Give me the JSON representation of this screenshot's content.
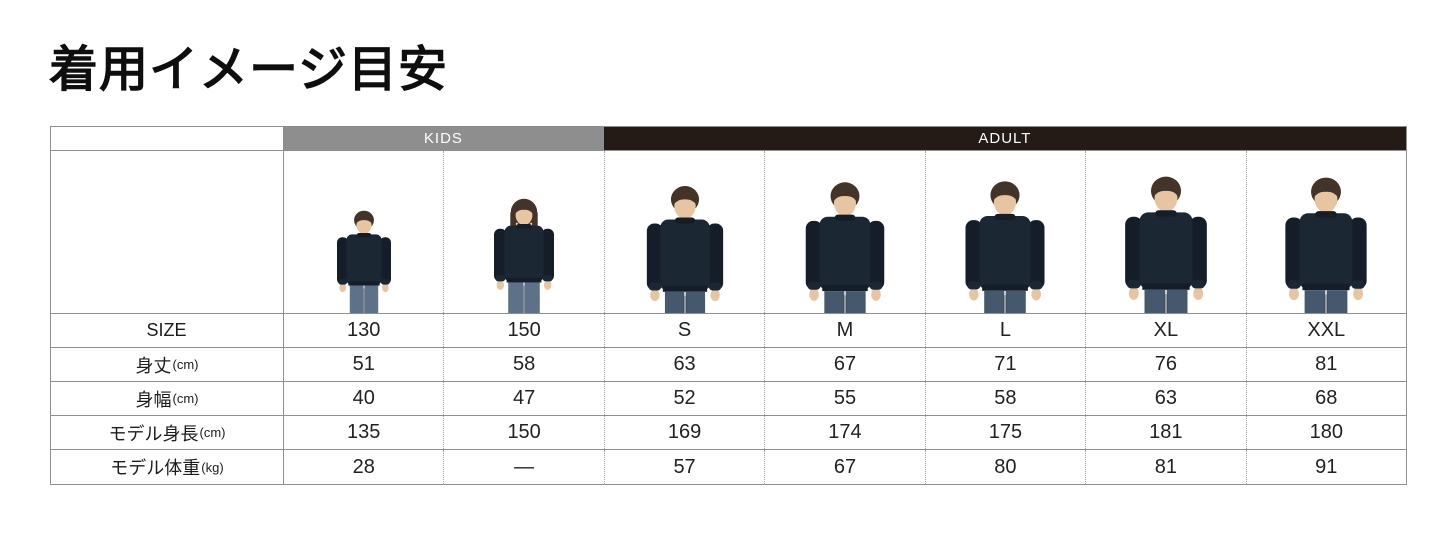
{
  "page": {
    "title": "着用イメージ目安"
  },
  "colors": {
    "kids_bar": "#8e8e8e",
    "adult_bar": "#241a16",
    "header_text": "#ffffff",
    "sweatshirt": "#1c2734",
    "sweatshirt_dark": "#141d28",
    "jeans_child": "#5d7289",
    "jeans_adult": "#46586d",
    "skin": "#e7c4a2",
    "hair": "#443329"
  },
  "table": {
    "groups": [
      {
        "label": "KIDS",
        "span": 2
      },
      {
        "label": "ADULT",
        "span": 5
      }
    ],
    "columns": [
      {
        "person": "child",
        "hair": "short"
      },
      {
        "person": "child",
        "hair": "medium"
      },
      {
        "person": "adult",
        "hair": "short"
      },
      {
        "person": "adult",
        "hair": "short"
      },
      {
        "person": "adult",
        "hair": "short"
      },
      {
        "person": "adult",
        "hair": "short"
      },
      {
        "person": "adult",
        "hair": "short"
      }
    ],
    "rows": [
      {
        "label": "SIZE",
        "unit": "",
        "values": [
          "130",
          "150",
          "S",
          "M",
          "L",
          "XL",
          "XXL"
        ]
      },
      {
        "label": "身丈",
        "unit": "(cm)",
        "values": [
          "51",
          "58",
          "63",
          "67",
          "71",
          "76",
          "81"
        ]
      },
      {
        "label": "身幅",
        "unit": "(cm)",
        "values": [
          "40",
          "47",
          "52",
          "55",
          "58",
          "63",
          "68"
        ]
      },
      {
        "label": "モデル身長",
        "unit": "(cm)",
        "values": [
          "135",
          "150",
          "169",
          "174",
          "175",
          "181",
          "180"
        ]
      },
      {
        "label": "モデル体重",
        "unit": "(kg)",
        "values": [
          "28",
          "—",
          "57",
          "67",
          "80",
          "81",
          "91"
        ]
      }
    ]
  },
  "chart_data": {
    "type": "table",
    "title": "着用イメージ目安",
    "column_groups": [
      {
        "label": "KIDS",
        "columns": [
          "130",
          "150"
        ]
      },
      {
        "label": "ADULT",
        "columns": [
          "S",
          "M",
          "L",
          "XL",
          "XXL"
        ]
      }
    ],
    "columns": [
      "130",
      "150",
      "S",
      "M",
      "L",
      "XL",
      "XXL"
    ],
    "rows": [
      {
        "label": "身丈(cm)",
        "values": [
          51,
          58,
          63,
          67,
          71,
          76,
          81
        ]
      },
      {
        "label": "身幅(cm)",
        "values": [
          40,
          47,
          52,
          55,
          58,
          63,
          68
        ]
      },
      {
        "label": "モデル身長(cm)",
        "values": [
          135,
          150,
          169,
          174,
          175,
          181,
          180
        ]
      },
      {
        "label": "モデル体重(kg)",
        "values": [
          28,
          null,
          57,
          67,
          80,
          81,
          91
        ]
      }
    ]
  }
}
